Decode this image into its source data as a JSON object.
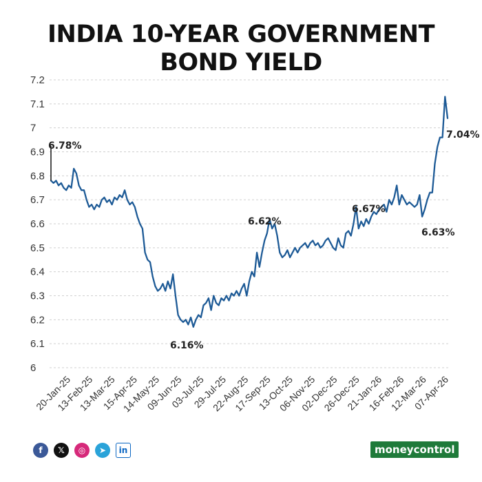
{
  "title": {
    "line1": "INDIA 10-YEAR GOVERNMENT",
    "line2": "BOND YIELD"
  },
  "chart_data": {
    "type": "line",
    "title": "INDIA 10-YEAR GOVERNMENT BOND YIELD",
    "xlabel": "",
    "ylabel": "",
    "ylim": [
      6,
      7.2
    ],
    "y_ticks": [
      "7.2",
      "7.1",
      "7",
      "6.9",
      "6.8",
      "6.7",
      "6.6",
      "6.5",
      "6.4",
      "6.3",
      "6.2",
      "6.1",
      "6"
    ],
    "x_tick_labels": [
      "20-Jan-25",
      "13-Feb-25",
      "13-Mar-25",
      "15-Apr-25",
      "14-May-25",
      "09-Jun-25",
      "03-Jul-25",
      "29-Jul-25",
      "22-Aug-25",
      "17-Sep-25",
      "13-Oct-25",
      "06-Nov-25",
      "02-Dec-25",
      "26-Dec-25",
      "21-Jan-26",
      "16-Feb-26",
      "12-Mar-26",
      "07-Apr-26"
    ],
    "series": [
      {
        "name": "India 10-year yield",
        "color": "#1d5a96",
        "values": [
          6.78,
          6.77,
          6.78,
          6.76,
          6.77,
          6.75,
          6.74,
          6.76,
          6.75,
          6.83,
          6.81,
          6.76,
          6.74,
          6.74,
          6.7,
          6.67,
          6.68,
          6.66,
          6.68,
          6.67,
          6.7,
          6.71,
          6.69,
          6.7,
          6.68,
          6.71,
          6.7,
          6.72,
          6.71,
          6.74,
          6.7,
          6.68,
          6.69,
          6.67,
          6.63,
          6.6,
          6.58,
          6.48,
          6.45,
          6.44,
          6.38,
          6.34,
          6.32,
          6.33,
          6.35,
          6.32,
          6.36,
          6.33,
          6.39,
          6.3,
          6.22,
          6.2,
          6.19,
          6.2,
          6.18,
          6.21,
          6.17,
          6.2,
          6.22,
          6.21,
          6.26,
          6.27,
          6.29,
          6.24,
          6.3,
          6.27,
          6.26,
          6.29,
          6.28,
          6.3,
          6.28,
          6.31,
          6.3,
          6.32,
          6.3,
          6.33,
          6.35,
          6.3,
          6.36,
          6.4,
          6.38,
          6.48,
          6.42,
          6.48,
          6.53,
          6.56,
          6.62,
          6.58,
          6.6,
          6.55,
          6.48,
          6.46,
          6.47,
          6.49,
          6.46,
          6.48,
          6.5,
          6.48,
          6.5,
          6.51,
          6.52,
          6.5,
          6.52,
          6.53,
          6.51,
          6.52,
          6.5,
          6.51,
          6.53,
          6.54,
          6.52,
          6.5,
          6.49,
          6.54,
          6.51,
          6.5,
          6.56,
          6.57,
          6.55,
          6.6,
          6.67,
          6.58,
          6.61,
          6.59,
          6.62,
          6.6,
          6.63,
          6.65,
          6.64,
          6.66,
          6.67,
          6.68,
          6.65,
          6.7,
          6.68,
          6.71,
          6.76,
          6.68,
          6.72,
          6.7,
          6.68,
          6.69,
          6.68,
          6.67,
          6.68,
          6.72,
          6.63,
          6.66,
          6.7,
          6.73,
          6.73,
          6.85,
          6.92,
          6.96,
          6.96,
          7.13,
          7.04
        ]
      }
    ],
    "annotations": [
      {
        "label": "6.78%",
        "value": 6.78
      },
      {
        "label": "6.16%",
        "value": 6.16
      },
      {
        "label": "6.62%",
        "value": 6.62
      },
      {
        "label": "6.67%",
        "value": 6.67
      },
      {
        "label": "6.63%",
        "value": 6.63
      },
      {
        "label": "7.04%",
        "value": 7.04
      }
    ]
  },
  "footer": {
    "social": [
      {
        "icon": "facebook-icon",
        "glyph": "f"
      },
      {
        "icon": "x-icon",
        "glyph": "𝕏"
      },
      {
        "icon": "instagram-icon",
        "glyph": "◎"
      },
      {
        "icon": "telegram-icon",
        "glyph": "➤"
      },
      {
        "icon": "linkedin-icon",
        "glyph": "in"
      }
    ],
    "brand": "moneycontrol"
  }
}
